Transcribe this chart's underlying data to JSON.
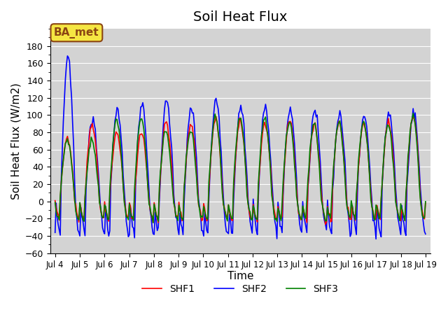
{
  "title": "Soil Heat Flux",
  "ylabel": "Soil Heat Flux (W/m2)",
  "xlabel": "Time",
  "ylim": [
    -60,
    200
  ],
  "yticks": [
    -60,
    -40,
    -20,
    0,
    20,
    40,
    60,
    80,
    100,
    120,
    140,
    160,
    180
  ],
  "annotation": "BA_met",
  "annotation_color": "#8B4513",
  "annotation_bg": "#f5e642",
  "background_color": "#d3d3d3",
  "line_colors": {
    "SHF1": "red",
    "SHF2": "blue",
    "SHF3": "green"
  },
  "legend_labels": [
    "SHF1",
    "SHF2",
    "SHF3"
  ],
  "start_day": 4,
  "end_day": 19,
  "days": 15,
  "title_fontsize": 14,
  "axis_label_fontsize": 11
}
